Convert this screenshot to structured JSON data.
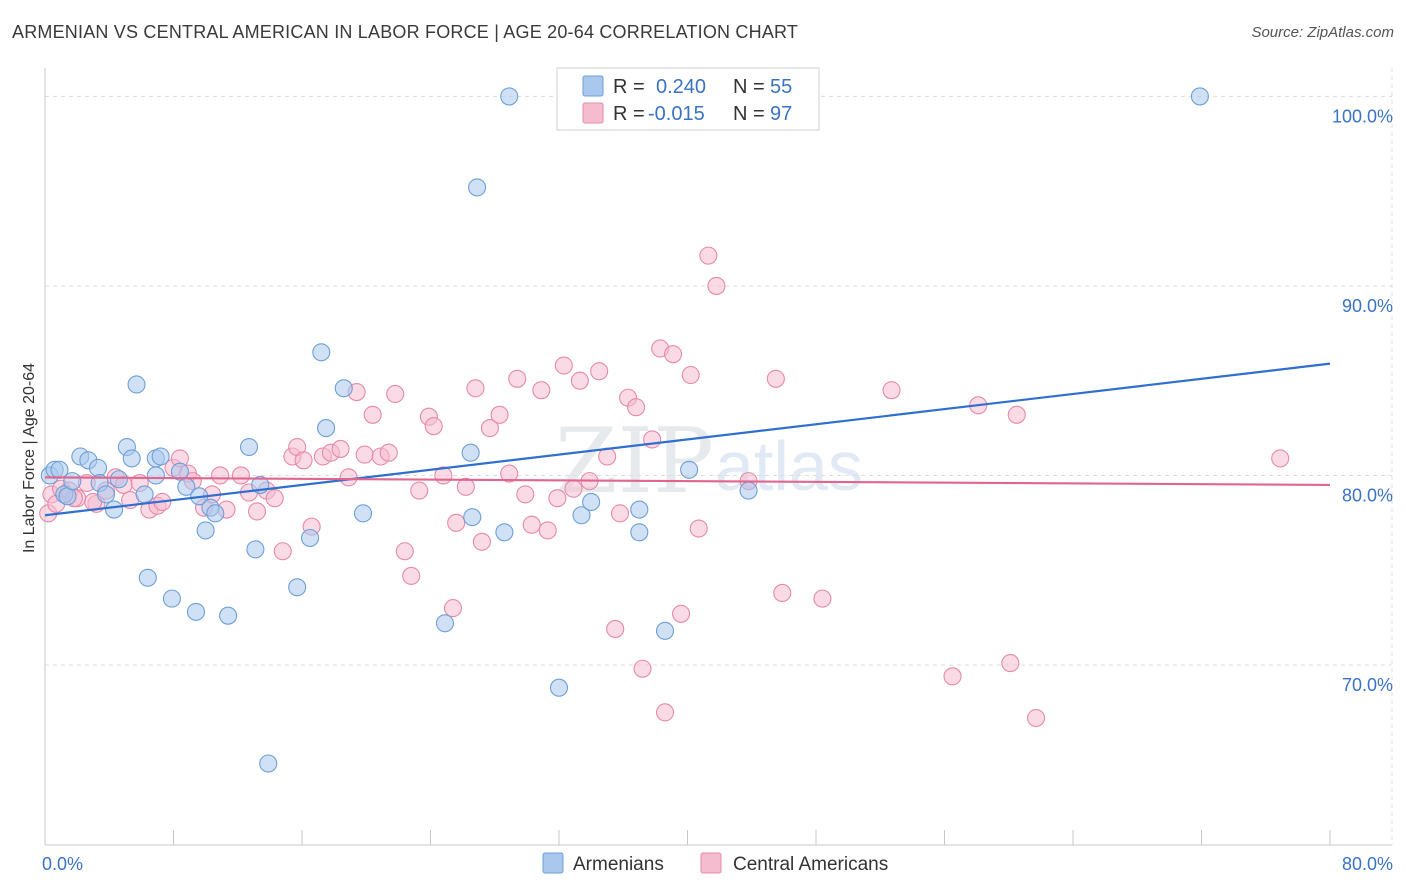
{
  "title": "ARMENIAN VS CENTRAL AMERICAN IN LABOR FORCE | AGE 20-64 CORRELATION CHART",
  "source": "Source: ZipAtlas.com",
  "watermark": {
    "zip": "ZIP",
    "atlas": "atlas"
  },
  "colors": {
    "armenian_fill": "#aac8ee",
    "armenian_stroke": "#6e9fd8",
    "armenian_line": "#2f6fcf",
    "central_fill": "#f5bcd0",
    "central_stroke": "#e68aab",
    "central_line": "#e0668f",
    "axis_label": "#3b73c4",
    "grid": "#dcdcdc"
  },
  "legend": {
    "rows": [
      {
        "r_label": "R =",
        "r_value": "0.240",
        "n_label": "N =",
        "n_value": "55"
      },
      {
        "r_label": "R =",
        "r_value": "-0.015",
        "n_label": "N =",
        "n_value": "97"
      }
    ]
  },
  "bottom_legend": [
    "Armenians",
    "Central Americans"
  ],
  "chart_data": {
    "type": "scatter",
    "title": "ARMENIAN VS CENTRAL AMERICAN IN LABOR FORCE | AGE 20-64 CORRELATION CHART",
    "xlabel": "",
    "ylabel": "In Labor Force | Age 20-64",
    "xlim": [
      0,
      80
    ],
    "ylim": [
      60.5,
      101.5
    ],
    "x_tick_labels": [
      {
        "value": 0,
        "label": "0.0%"
      },
      {
        "value": 80,
        "label": "80.0%"
      }
    ],
    "y_tick_labels": [
      {
        "value": 100,
        "label": "100.0%"
      },
      {
        "value": 90,
        "label": "90.0%"
      },
      {
        "value": 80,
        "label": "80.0%"
      },
      {
        "value": 70,
        "label": "70.0%"
      }
    ],
    "grid": true,
    "series": [
      {
        "name": "Armenians",
        "color": "#aac8ee",
        "trend": {
          "x": [
            0,
            80
          ],
          "y": [
            77.9,
            85.9
          ]
        },
        "points": [
          [
            0.3,
            80.0
          ],
          [
            0.6,
            80.3
          ],
          [
            0.9,
            80.3
          ],
          [
            1.2,
            79.0
          ],
          [
            1.4,
            78.9
          ],
          [
            1.7,
            79.7
          ],
          [
            2.2,
            81.0
          ],
          [
            2.7,
            80.8
          ],
          [
            3.3,
            80.4
          ],
          [
            3.4,
            79.6
          ],
          [
            3.8,
            79.0
          ],
          [
            4.3,
            78.2
          ],
          [
            4.6,
            79.8
          ],
          [
            5.1,
            81.5
          ],
          [
            5.4,
            80.9
          ],
          [
            5.7,
            84.8
          ],
          [
            6.2,
            79.0
          ],
          [
            6.4,
            74.6
          ],
          [
            6.9,
            80.0
          ],
          [
            6.9,
            80.9
          ],
          [
            7.2,
            81.0
          ],
          [
            7.9,
            73.5
          ],
          [
            8.4,
            80.2
          ],
          [
            8.8,
            79.4
          ],
          [
            9.4,
            72.8
          ],
          [
            9.6,
            78.9
          ],
          [
            10.0,
            77.1
          ],
          [
            10.3,
            78.3
          ],
          [
            10.6,
            78.0
          ],
          [
            11.4,
            72.6
          ],
          [
            12.7,
            81.5
          ],
          [
            13.1,
            76.1
          ],
          [
            13.4,
            79.5
          ],
          [
            13.9,
            64.8
          ],
          [
            15.7,
            74.1
          ],
          [
            16.5,
            76.7
          ],
          [
            17.2,
            86.5
          ],
          [
            17.5,
            82.5
          ],
          [
            18.6,
            84.6
          ],
          [
            19.8,
            78.0
          ],
          [
            24.9,
            72.2
          ],
          [
            26.5,
            81.2
          ],
          [
            26.6,
            77.8
          ],
          [
            26.9,
            95.2
          ],
          [
            28.6,
            77.0
          ],
          [
            28.9,
            100.0
          ],
          [
            32.0,
            68.8
          ],
          [
            33.4,
            77.9
          ],
          [
            34.0,
            78.6
          ],
          [
            37.0,
            78.2
          ],
          [
            37.0,
            77.0
          ],
          [
            38.6,
            71.8
          ],
          [
            40.1,
            80.3
          ],
          [
            43.8,
            79.2
          ],
          [
            71.9,
            100.0
          ]
        ]
      },
      {
        "name": "Central Americans",
        "color": "#f5bcd0",
        "trend": {
          "x": [
            0,
            80
          ],
          "y": [
            79.9,
            79.5
          ]
        },
        "points": [
          [
            0.2,
            78.0
          ],
          [
            0.4,
            79.0
          ],
          [
            0.7,
            78.5
          ],
          [
            1.0,
            79.3
          ],
          [
            1.5,
            79.2
          ],
          [
            2.0,
            78.8
          ],
          [
            2.6,
            79.6
          ],
          [
            3.2,
            78.5
          ],
          [
            3.8,
            79.2
          ],
          [
            4.4,
            79.9
          ],
          [
            4.9,
            79.5
          ],
          [
            5.3,
            78.7
          ],
          [
            5.9,
            79.6
          ],
          [
            6.5,
            78.2
          ],
          [
            7.0,
            78.4
          ],
          [
            7.3,
            78.6
          ],
          [
            8.0,
            80.4
          ],
          [
            8.4,
            80.9
          ],
          [
            8.9,
            80.1
          ],
          [
            9.2,
            79.7
          ],
          [
            9.9,
            78.3
          ],
          [
            10.4,
            79.0
          ],
          [
            10.9,
            80.0
          ],
          [
            11.3,
            78.2
          ],
          [
            12.2,
            80.0
          ],
          [
            12.7,
            79.1
          ],
          [
            13.2,
            78.1
          ],
          [
            13.8,
            79.2
          ],
          [
            14.3,
            78.8
          ],
          [
            14.8,
            76.0
          ],
          [
            15.4,
            81.0
          ],
          [
            15.7,
            81.5
          ],
          [
            16.1,
            80.8
          ],
          [
            16.6,
            77.3
          ],
          [
            17.3,
            81.0
          ],
          [
            17.8,
            81.2
          ],
          [
            18.4,
            81.4
          ],
          [
            18.9,
            79.9
          ],
          [
            19.4,
            84.4
          ],
          [
            19.9,
            81.1
          ],
          [
            20.4,
            83.2
          ],
          [
            20.9,
            81.0
          ],
          [
            21.4,
            81.2
          ],
          [
            21.8,
            84.3
          ],
          [
            22.4,
            76.0
          ],
          [
            22.8,
            74.7
          ],
          [
            23.3,
            79.2
          ],
          [
            23.9,
            83.1
          ],
          [
            24.2,
            82.6
          ],
          [
            24.8,
            80.0
          ],
          [
            25.4,
            73.0
          ],
          [
            25.6,
            77.5
          ],
          [
            26.2,
            79.4
          ],
          [
            26.8,
            84.6
          ],
          [
            27.2,
            76.5
          ],
          [
            27.7,
            82.5
          ],
          [
            28.3,
            83.2
          ],
          [
            28.9,
            80.1
          ],
          [
            29.4,
            85.1
          ],
          [
            29.9,
            79.0
          ],
          [
            30.3,
            77.4
          ],
          [
            30.9,
            84.5
          ],
          [
            31.3,
            77.1
          ],
          [
            31.9,
            78.8
          ],
          [
            32.3,
            85.8
          ],
          [
            32.9,
            79.3
          ],
          [
            33.3,
            85.0
          ],
          [
            33.9,
            79.7
          ],
          [
            34.5,
            85.5
          ],
          [
            35.0,
            81.0
          ],
          [
            35.5,
            71.9
          ],
          [
            35.8,
            78.0
          ],
          [
            36.3,
            84.1
          ],
          [
            36.8,
            83.6
          ],
          [
            37.2,
            69.8
          ],
          [
            37.8,
            81.9
          ],
          [
            38.3,
            86.7
          ],
          [
            38.6,
            67.5
          ],
          [
            39.1,
            86.4
          ],
          [
            39.6,
            72.7
          ],
          [
            40.2,
            85.3
          ],
          [
            40.7,
            77.2
          ],
          [
            41.3,
            91.6
          ],
          [
            41.8,
            90.0
          ],
          [
            43.8,
            79.7
          ],
          [
            45.5,
            85.1
          ],
          [
            45.9,
            73.8
          ],
          [
            48.4,
            73.5
          ],
          [
            52.7,
            84.5
          ],
          [
            56.5,
            69.4
          ],
          [
            58.1,
            83.7
          ],
          [
            60.1,
            70.1
          ],
          [
            60.5,
            83.2
          ],
          [
            61.7,
            67.2
          ],
          [
            76.9,
            80.9
          ],
          [
            1.8,
            78.8
          ],
          [
            3.0,
            78.6
          ]
        ]
      }
    ]
  }
}
